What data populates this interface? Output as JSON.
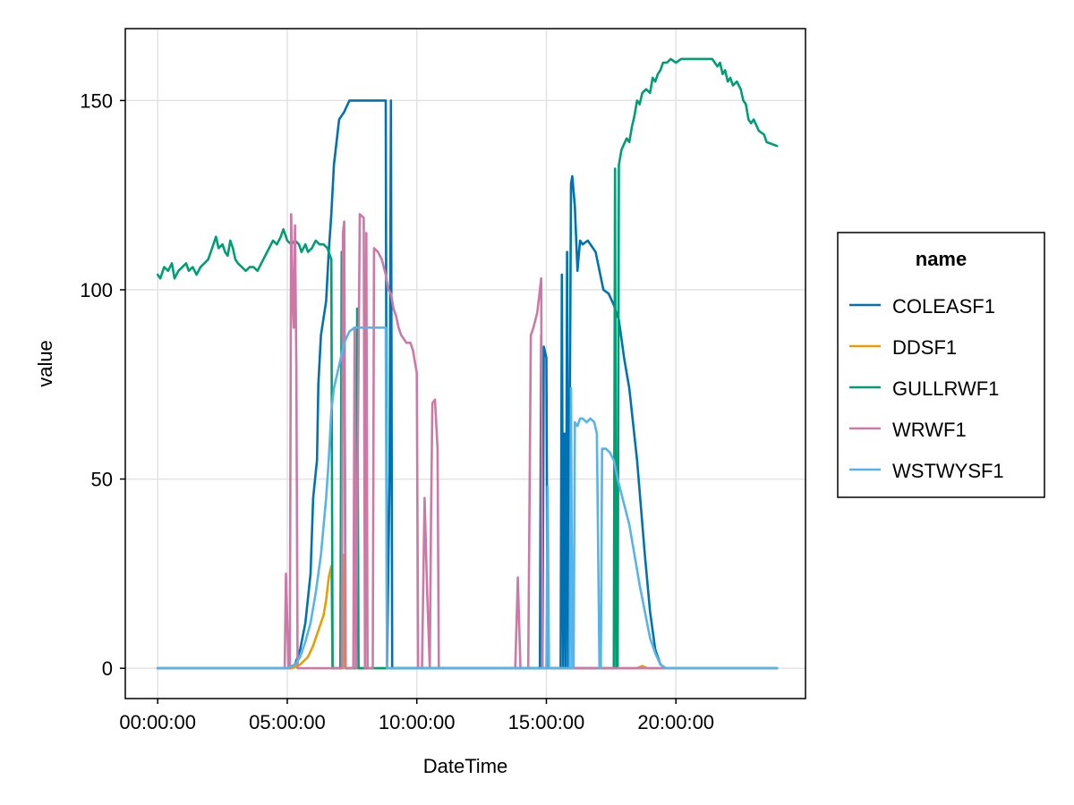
{
  "chart_data": {
    "type": "line",
    "title": "",
    "xlabel": "DateTime",
    "ylabel": "value",
    "x_unit": "hours",
    "xlim": [
      -1.25,
      25.0
    ],
    "ylim": [
      -8,
      169
    ],
    "x_ticks": [
      {
        "value": 0,
        "label": "00:00:00"
      },
      {
        "value": 5,
        "label": "05:00:00"
      },
      {
        "value": 10,
        "label": "10:00:00"
      },
      {
        "value": 15,
        "label": "15:00:00"
      },
      {
        "value": 20,
        "label": "20:00:00"
      }
    ],
    "y_ticks": [
      {
        "value": 0,
        "label": "0"
      },
      {
        "value": 50,
        "label": "50"
      },
      {
        "value": 100,
        "label": "100"
      },
      {
        "value": 150,
        "label": "150"
      }
    ],
    "grid": true,
    "legend": {
      "title": "name",
      "position": "right"
    },
    "series": [
      {
        "name": "COLEASF1",
        "color": "#0072b2",
        "points": [
          [
            0,
            0
          ],
          [
            5.0,
            0
          ],
          [
            5.3,
            1
          ],
          [
            5.5,
            5
          ],
          [
            5.7,
            12
          ],
          [
            5.9,
            25
          ],
          [
            6.0,
            45
          ],
          [
            6.15,
            55
          ],
          [
            6.2,
            75
          ],
          [
            6.3,
            88
          ],
          [
            6.5,
            97
          ],
          [
            6.6,
            110
          ],
          [
            6.7,
            120
          ],
          [
            6.8,
            133
          ],
          [
            7.0,
            145
          ],
          [
            7.2,
            147
          ],
          [
            7.4,
            150
          ],
          [
            8.8,
            150
          ],
          [
            8.85,
            0
          ],
          [
            8.95,
            52
          ],
          [
            9.0,
            150
          ],
          [
            9.05,
            0
          ],
          [
            14.75,
            0
          ],
          [
            14.8,
            88
          ],
          [
            14.85,
            0
          ],
          [
            14.9,
            85
          ],
          [
            15.0,
            82
          ],
          [
            15.05,
            0
          ],
          [
            15.55,
            0
          ],
          [
            15.6,
            104
          ],
          [
            15.65,
            0
          ],
          [
            15.7,
            62
          ],
          [
            15.75,
            0
          ],
          [
            15.8,
            110
          ],
          [
            15.85,
            0
          ],
          [
            15.95,
            128
          ],
          [
            16.0,
            130
          ],
          [
            16.1,
            122
          ],
          [
            16.2,
            105
          ],
          [
            16.3,
            113
          ],
          [
            16.4,
            112
          ],
          [
            16.6,
            113
          ],
          [
            16.7,
            112
          ],
          [
            16.9,
            110
          ],
          [
            17.2,
            100
          ],
          [
            17.4,
            99
          ],
          [
            17.6,
            96
          ],
          [
            17.8,
            92
          ],
          [
            18.0,
            82
          ],
          [
            18.2,
            74
          ],
          [
            18.5,
            55
          ],
          [
            18.8,
            30
          ],
          [
            19.0,
            15
          ],
          [
            19.2,
            5
          ],
          [
            19.4,
            1
          ],
          [
            19.6,
            0
          ],
          [
            23.9,
            0
          ]
        ]
      },
      {
        "name": "DDSF1",
        "color": "#e69f00",
        "points": [
          [
            0,
            0
          ],
          [
            5.2,
            0
          ],
          [
            5.5,
            1
          ],
          [
            5.8,
            3
          ],
          [
            6.0,
            6
          ],
          [
            6.2,
            10
          ],
          [
            6.4,
            14
          ],
          [
            6.5,
            18
          ],
          [
            6.6,
            24
          ],
          [
            6.7,
            27
          ],
          [
            6.75,
            0
          ],
          [
            7.15,
            0
          ],
          [
            7.2,
            30
          ],
          [
            7.25,
            0
          ],
          [
            18.5,
            0
          ],
          [
            18.7,
            0.6
          ],
          [
            18.9,
            0
          ],
          [
            23.9,
            0
          ]
        ]
      },
      {
        "name": "GULLRWF1",
        "color": "#009e73",
        "points": [
          [
            0,
            104
          ],
          [
            0.1,
            103
          ],
          [
            0.25,
            106
          ],
          [
            0.4,
            105
          ],
          [
            0.55,
            107
          ],
          [
            0.65,
            103
          ],
          [
            0.8,
            105
          ],
          [
            0.95,
            106
          ],
          [
            1.1,
            107
          ],
          [
            1.2,
            105
          ],
          [
            1.35,
            106
          ],
          [
            1.5,
            104
          ],
          [
            1.65,
            106
          ],
          [
            1.8,
            107
          ],
          [
            1.95,
            108
          ],
          [
            2.1,
            111
          ],
          [
            2.25,
            114
          ],
          [
            2.35,
            111
          ],
          [
            2.5,
            112
          ],
          [
            2.6,
            110
          ],
          [
            2.7,
            109
          ],
          [
            2.8,
            113
          ],
          [
            2.9,
            111
          ],
          [
            3.0,
            108
          ],
          [
            3.1,
            107
          ],
          [
            3.25,
            106
          ],
          [
            3.4,
            105
          ],
          [
            3.55,
            106
          ],
          [
            3.7,
            106
          ],
          [
            3.85,
            105
          ],
          [
            4.0,
            107
          ],
          [
            4.15,
            109
          ],
          [
            4.3,
            111
          ],
          [
            4.45,
            113
          ],
          [
            4.6,
            112
          ],
          [
            4.75,
            114
          ],
          [
            4.85,
            116
          ],
          [
            5.0,
            113
          ],
          [
            5.15,
            112
          ],
          [
            5.3,
            113
          ],
          [
            5.45,
            112
          ],
          [
            5.55,
            110
          ],
          [
            5.7,
            112
          ],
          [
            5.8,
            110
          ],
          [
            5.95,
            111
          ],
          [
            6.1,
            113
          ],
          [
            6.25,
            112
          ],
          [
            6.4,
            112
          ],
          [
            6.55,
            111
          ],
          [
            6.7,
            108
          ],
          [
            6.75,
            0
          ],
          [
            7.05,
            0
          ],
          [
            7.1,
            110
          ],
          [
            7.2,
            109
          ],
          [
            7.25,
            0
          ],
          [
            7.65,
            0
          ],
          [
            7.7,
            95
          ],
          [
            7.75,
            0
          ],
          [
            9.4,
            0
          ],
          [
            17.6,
            0
          ],
          [
            17.65,
            132
          ],
          [
            17.7,
            0
          ],
          [
            17.75,
            0
          ],
          [
            17.8,
            133
          ],
          [
            17.9,
            137
          ],
          [
            18.1,
            140
          ],
          [
            18.2,
            139
          ],
          [
            18.3,
            143
          ],
          [
            18.4,
            146
          ],
          [
            18.5,
            150
          ],
          [
            18.6,
            149
          ],
          [
            18.7,
            152
          ],
          [
            18.85,
            153
          ],
          [
            19.0,
            152
          ],
          [
            19.1,
            156
          ],
          [
            19.2,
            155
          ],
          [
            19.3,
            157
          ],
          [
            19.4,
            158
          ],
          [
            19.5,
            160
          ],
          [
            19.65,
            160
          ],
          [
            19.8,
            161
          ],
          [
            20.0,
            160
          ],
          [
            20.2,
            161
          ],
          [
            20.4,
            161
          ],
          [
            20.6,
            161
          ],
          [
            20.8,
            161
          ],
          [
            21.0,
            161
          ],
          [
            21.2,
            161
          ],
          [
            21.4,
            161
          ],
          [
            21.5,
            160
          ],
          [
            21.6,
            159
          ],
          [
            21.7,
            160
          ],
          [
            21.8,
            157
          ],
          [
            21.9,
            158
          ],
          [
            22.0,
            155
          ],
          [
            22.1,
            156
          ],
          [
            22.2,
            154
          ],
          [
            22.35,
            155
          ],
          [
            22.5,
            153
          ],
          [
            22.6,
            150
          ],
          [
            22.7,
            149
          ],
          [
            22.8,
            145
          ],
          [
            22.9,
            144
          ],
          [
            23.0,
            145
          ],
          [
            23.2,
            142
          ],
          [
            23.4,
            141
          ],
          [
            23.5,
            139
          ],
          [
            23.9,
            138
          ]
        ]
      },
      {
        "name": "WRWF1",
        "color": "#cc79a7",
        "points": [
          [
            0,
            0
          ],
          [
            4.9,
            0
          ],
          [
            4.95,
            25
          ],
          [
            5.05,
            0
          ],
          [
            5.1,
            0
          ],
          [
            5.15,
            120
          ],
          [
            5.2,
            100
          ],
          [
            5.25,
            90
          ],
          [
            5.3,
            117
          ],
          [
            5.35,
            80
          ],
          [
            5.4,
            0
          ],
          [
            7.1,
            0
          ],
          [
            7.15,
            115
          ],
          [
            7.2,
            118
          ],
          [
            7.25,
            0
          ],
          [
            7.55,
            0
          ],
          [
            7.6,
            90
          ],
          [
            7.65,
            0
          ],
          [
            7.8,
            120
          ],
          [
            7.95,
            119
          ],
          [
            8.0,
            0
          ],
          [
            8.05,
            115
          ],
          [
            8.1,
            0
          ],
          [
            8.3,
            0
          ],
          [
            8.35,
            111
          ],
          [
            8.5,
            110
          ],
          [
            8.65,
            108
          ],
          [
            8.8,
            104
          ],
          [
            8.9,
            100
          ],
          [
            9.0,
            99
          ],
          [
            9.1,
            95
          ],
          [
            9.2,
            93
          ],
          [
            9.3,
            90
          ],
          [
            9.4,
            88
          ],
          [
            9.5,
            87
          ],
          [
            9.6,
            86
          ],
          [
            9.75,
            86
          ],
          [
            9.85,
            84
          ],
          [
            10.0,
            78
          ],
          [
            10.05,
            0
          ],
          [
            10.2,
            0
          ],
          [
            10.3,
            45
          ],
          [
            10.4,
            20
          ],
          [
            10.5,
            0
          ],
          [
            10.55,
            40
          ],
          [
            10.6,
            70
          ],
          [
            10.7,
            71
          ],
          [
            10.8,
            58
          ],
          [
            10.85,
            0
          ],
          [
            13.8,
            0
          ],
          [
            13.9,
            24
          ],
          [
            14.0,
            0
          ],
          [
            14.3,
            0
          ],
          [
            14.4,
            88
          ],
          [
            14.5,
            90
          ],
          [
            14.65,
            94
          ],
          [
            14.8,
            103
          ],
          [
            14.85,
            0
          ],
          [
            23.9,
            0
          ]
        ]
      },
      {
        "name": "WSTWYSF1",
        "color": "#56b4e9",
        "points": [
          [
            0,
            0
          ],
          [
            5.0,
            0
          ],
          [
            5.3,
            1
          ],
          [
            5.5,
            3
          ],
          [
            5.7,
            7
          ],
          [
            5.9,
            12
          ],
          [
            6.1,
            20
          ],
          [
            6.3,
            30
          ],
          [
            6.5,
            45
          ],
          [
            6.6,
            55
          ],
          [
            6.7,
            68
          ],
          [
            6.8,
            74
          ],
          [
            7.0,
            80
          ],
          [
            7.2,
            86
          ],
          [
            7.4,
            89
          ],
          [
            7.6,
            90
          ],
          [
            8.8,
            90
          ],
          [
            8.85,
            0
          ],
          [
            15.0,
            0
          ],
          [
            15.05,
            48
          ],
          [
            15.1,
            0
          ],
          [
            15.9,
            0
          ],
          [
            15.95,
            74
          ],
          [
            16.0,
            0
          ],
          [
            16.05,
            0
          ],
          [
            16.1,
            65
          ],
          [
            16.2,
            64
          ],
          [
            16.3,
            66
          ],
          [
            16.4,
            66
          ],
          [
            16.55,
            65
          ],
          [
            16.7,
            66
          ],
          [
            16.85,
            65
          ],
          [
            16.95,
            62
          ],
          [
            17.05,
            0
          ],
          [
            17.1,
            0
          ],
          [
            17.15,
            58
          ],
          [
            17.3,
            58
          ],
          [
            17.45,
            57
          ],
          [
            17.6,
            55
          ],
          [
            17.75,
            50
          ],
          [
            17.9,
            46
          ],
          [
            18.05,
            42
          ],
          [
            18.2,
            38
          ],
          [
            18.4,
            30
          ],
          [
            18.6,
            22
          ],
          [
            18.8,
            15
          ],
          [
            19.0,
            8
          ],
          [
            19.2,
            4
          ],
          [
            19.4,
            1
          ],
          [
            19.6,
            0
          ],
          [
            23.9,
            0
          ]
        ]
      }
    ]
  }
}
